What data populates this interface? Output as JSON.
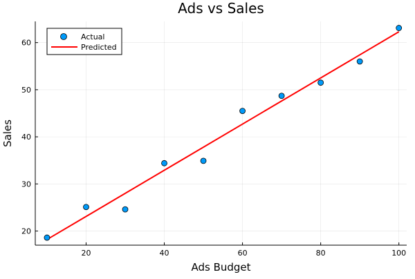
{
  "chart_data": {
    "type": "scatter",
    "title": "Ads vs Sales",
    "xlabel": "Ads Budget",
    "ylabel": "Sales",
    "xlim": [
      7,
      102
    ],
    "ylim": [
      17,
      64.5
    ],
    "xticks": [
      20,
      40,
      60,
      80,
      100
    ],
    "yticks": [
      20,
      30,
      40,
      50,
      60
    ],
    "grid": true,
    "legend_position": "top-left",
    "series": [
      {
        "name": "Actual",
        "kind": "scatter",
        "color": "#009af9",
        "x": [
          10,
          20,
          30,
          40,
          50,
          60,
          70,
          80,
          90,
          100
        ],
        "y": [
          18.6,
          25.1,
          24.6,
          34.4,
          34.9,
          45.5,
          48.7,
          51.5,
          56.0,
          63.1
        ]
      },
      {
        "name": "Predicted",
        "kind": "line",
        "color": "#ff0000",
        "x": [
          10,
          100
        ],
        "y": [
          18.2,
          62.3
        ]
      }
    ]
  }
}
